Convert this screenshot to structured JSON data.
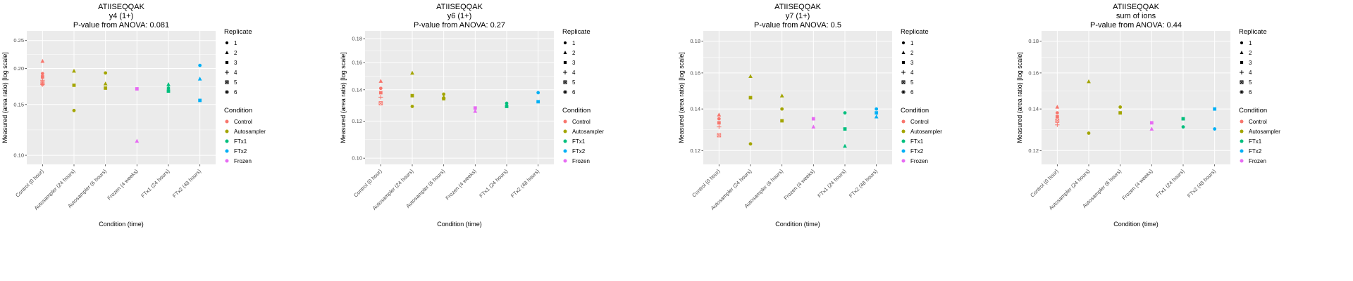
{
  "page": {
    "background": "#FFFFFF",
    "panel_background": "#EBEBEB",
    "gridline_color": "#FFFFFF",
    "tick_color": "#333333"
  },
  "categories": [
    "Control (0 hour)",
    "Autosampler (24 hours)",
    "Autosampler (6 hours)",
    "Frozen (4 weeks)",
    "FTx1 (24 hours)",
    "FTx2 (48 hours)"
  ],
  "category_condition": [
    "Control",
    "Autosampler",
    "Autosampler",
    "Frozen",
    "FTx1",
    "FTx2"
  ],
  "condition_colors": {
    "Control": "#F8766D",
    "Autosampler": "#A3A500",
    "FTx1": "#00BF7D",
    "FTx2": "#00B0F6",
    "Frozen": "#E76BF3"
  },
  "legend": {
    "replicate_title": "Replicate",
    "replicates": [
      "1",
      "2",
      "3",
      "4",
      "5",
      "6"
    ],
    "condition_title": "Condition",
    "conditions": [
      {
        "label": "Control",
        "color": "#F8766D"
      },
      {
        "label": "Autosampler",
        "color": "#A3A500"
      },
      {
        "label": "FTx1",
        "color": "#00BF7D"
      },
      {
        "label": "FTx2",
        "color": "#00B0F6"
      },
      {
        "label": "Frozen",
        "color": "#E76BF3"
      }
    ]
  },
  "chart_data": [
    {
      "type": "scatter",
      "title": "ATIISEQQAK",
      "subtitle": "y4 (1+)",
      "pvalue_text": "P-value from ANOVA: 0.081",
      "xlabel": "Condition (time)",
      "ylabel": "Measured (area ratio) [log scale]",
      "y_scale": "log",
      "ylim": [
        0.093,
        0.27
      ],
      "ytick_values": [
        0.1,
        0.15,
        0.2,
        0.25
      ],
      "ytick_labels": [
        "0.10",
        "0.15",
        "0.20",
        "0.25"
      ],
      "points": [
        {
          "category": 0,
          "replicate": 2,
          "y": 0.212
        },
        {
          "category": 0,
          "replicate": 1,
          "y": 0.192
        },
        {
          "category": 0,
          "replicate": 3,
          "y": 0.187
        },
        {
          "category": 0,
          "replicate": 4,
          "y": 0.182
        },
        {
          "category": 0,
          "replicate": 5,
          "y": 0.178
        },
        {
          "category": 0,
          "replicate": 6,
          "y": 0.176
        },
        {
          "category": 1,
          "replicate": 2,
          "y": 0.196
        },
        {
          "category": 1,
          "replicate": 3,
          "y": 0.175
        },
        {
          "category": 1,
          "replicate": 1,
          "y": 0.143
        },
        {
          "category": 2,
          "replicate": 1,
          "y": 0.193
        },
        {
          "category": 2,
          "replicate": 2,
          "y": 0.177
        },
        {
          "category": 2,
          "replicate": 3,
          "y": 0.171
        },
        {
          "category": 3,
          "replicate": 3,
          "y": 0.17
        },
        {
          "category": 3,
          "replicate": 2,
          "y": 0.112
        },
        {
          "category": 4,
          "replicate": 2,
          "y": 0.176
        },
        {
          "category": 4,
          "replicate": 1,
          "y": 0.171
        },
        {
          "category": 4,
          "replicate": 3,
          "y": 0.167
        },
        {
          "category": 5,
          "replicate": 1,
          "y": 0.205
        },
        {
          "category": 5,
          "replicate": 2,
          "y": 0.184
        },
        {
          "category": 5,
          "replicate": 3,
          "y": 0.155
        }
      ]
    },
    {
      "type": "scatter",
      "title": "ATIISEQQAK",
      "subtitle": "y6 (1+)",
      "pvalue_text": "P-value from ANOVA: 0.27",
      "xlabel": "Condition (time)",
      "ylabel": "Measured (area ratio) [log scale]",
      "y_scale": "log",
      "ylim": [
        0.097,
        0.187
      ],
      "ytick_values": [
        0.1,
        0.12,
        0.14,
        0.16,
        0.18
      ],
      "ytick_labels": [
        "0.10",
        "0.12",
        "0.14",
        "0.16",
        "0.18"
      ],
      "points": [
        {
          "category": 0,
          "replicate": 2,
          "y": 0.146
        },
        {
          "category": 0,
          "replicate": 1,
          "y": 0.141
        },
        {
          "category": 0,
          "replicate": 3,
          "y": 0.138
        },
        {
          "category": 0,
          "replicate": 4,
          "y": 0.135
        },
        {
          "category": 0,
          "replicate": 5,
          "y": 0.131
        },
        {
          "category": 1,
          "replicate": 2,
          "y": 0.152
        },
        {
          "category": 1,
          "replicate": 3,
          "y": 0.136
        },
        {
          "category": 1,
          "replicate": 1,
          "y": 0.129
        },
        {
          "category": 2,
          "replicate": 1,
          "y": 0.137
        },
        {
          "category": 2,
          "replicate": 2,
          "y": 0.135
        },
        {
          "category": 2,
          "replicate": 3,
          "y": 0.134
        },
        {
          "category": 3,
          "replicate": 3,
          "y": 0.128
        },
        {
          "category": 3,
          "replicate": 2,
          "y": 0.126
        },
        {
          "category": 4,
          "replicate": 1,
          "y": 0.131
        },
        {
          "category": 4,
          "replicate": 3,
          "y": 0.129
        },
        {
          "category": 5,
          "replicate": 1,
          "y": 0.138
        },
        {
          "category": 5,
          "replicate": 3,
          "y": 0.132
        }
      ]
    },
    {
      "type": "scatter",
      "title": "ATIISEQQAK",
      "subtitle": "y7 (1+)",
      "pvalue_text": "P-value from ANOVA: 0.5",
      "xlabel": "Condition (time)",
      "ylabel": "Measured (area ratio) [log scale]",
      "y_scale": "log",
      "ylim": [
        0.114,
        0.187
      ],
      "ytick_values": [
        0.12,
        0.14,
        0.16,
        0.18
      ],
      "ytick_labels": [
        "0.12",
        "0.14",
        "0.16",
        "0.18"
      ],
      "points": [
        {
          "category": 0,
          "replicate": 2,
          "y": 0.137
        },
        {
          "category": 0,
          "replicate": 1,
          "y": 0.135
        },
        {
          "category": 0,
          "replicate": 3,
          "y": 0.133
        },
        {
          "category": 0,
          "replicate": 4,
          "y": 0.131
        },
        {
          "category": 0,
          "replicate": 5,
          "y": 0.127
        },
        {
          "category": 1,
          "replicate": 2,
          "y": 0.158
        },
        {
          "category": 1,
          "replicate": 3,
          "y": 0.146
        },
        {
          "category": 1,
          "replicate": 1,
          "y": 0.123
        },
        {
          "category": 2,
          "replicate": 2,
          "y": 0.147
        },
        {
          "category": 2,
          "replicate": 1,
          "y": 0.14
        },
        {
          "category": 2,
          "replicate": 3,
          "y": 0.134
        },
        {
          "category": 3,
          "replicate": 3,
          "y": 0.135
        },
        {
          "category": 3,
          "replicate": 2,
          "y": 0.131
        },
        {
          "category": 4,
          "replicate": 1,
          "y": 0.138
        },
        {
          "category": 4,
          "replicate": 3,
          "y": 0.13
        },
        {
          "category": 4,
          "replicate": 2,
          "y": 0.122
        },
        {
          "category": 5,
          "replicate": 1,
          "y": 0.14
        },
        {
          "category": 5,
          "replicate": 3,
          "y": 0.138
        },
        {
          "category": 5,
          "replicate": 2,
          "y": 0.136
        }
      ]
    },
    {
      "type": "scatter",
      "title": "ATIISEQQAK",
      "subtitle": "sum of ions",
      "pvalue_text": "P-value from ANOVA: 0.44",
      "xlabel": "Condition (time)",
      "ylabel": "Measured (area ratio) [log scale]",
      "y_scale": "log",
      "ylim": [
        0.114,
        0.187
      ],
      "ytick_values": [
        0.12,
        0.14,
        0.16,
        0.18
      ],
      "ytick_labels": [
        "0.12",
        "0.14",
        "0.16",
        "0.18"
      ],
      "points": [
        {
          "category": 0,
          "replicate": 2,
          "y": 0.141
        },
        {
          "category": 0,
          "replicate": 1,
          "y": 0.138
        },
        {
          "category": 0,
          "replicate": 3,
          "y": 0.136
        },
        {
          "category": 0,
          "replicate": 5,
          "y": 0.134
        },
        {
          "category": 0,
          "replicate": 4,
          "y": 0.132
        },
        {
          "category": 1,
          "replicate": 2,
          "y": 0.155
        },
        {
          "category": 1,
          "replicate": 1,
          "y": 0.128
        },
        {
          "category": 2,
          "replicate": 1,
          "y": 0.141
        },
        {
          "category": 2,
          "replicate": 3,
          "y": 0.138
        },
        {
          "category": 3,
          "replicate": 3,
          "y": 0.133
        },
        {
          "category": 3,
          "replicate": 2,
          "y": 0.13
        },
        {
          "category": 4,
          "replicate": 3,
          "y": 0.135
        },
        {
          "category": 4,
          "replicate": 1,
          "y": 0.131
        },
        {
          "category": 5,
          "replicate": 3,
          "y": 0.14
        },
        {
          "category": 5,
          "replicate": 1,
          "y": 0.13
        }
      ]
    }
  ]
}
